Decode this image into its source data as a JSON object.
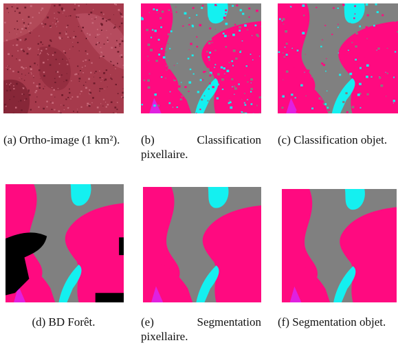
{
  "figures": [
    {
      "label": "(a)",
      "caption": "Ortho-image (1 km²)."
    },
    {
      "label": "(b)",
      "caption": "Classification pixellaire."
    },
    {
      "label": "(c)",
      "caption": "Classification objet."
    },
    {
      "label": "(d)",
      "caption": "BD Forêt."
    },
    {
      "label": "(e)",
      "caption": "Segmentation pixellaire."
    },
    {
      "label": "(f)",
      "caption": "Segmentation objet."
    }
  ]
}
